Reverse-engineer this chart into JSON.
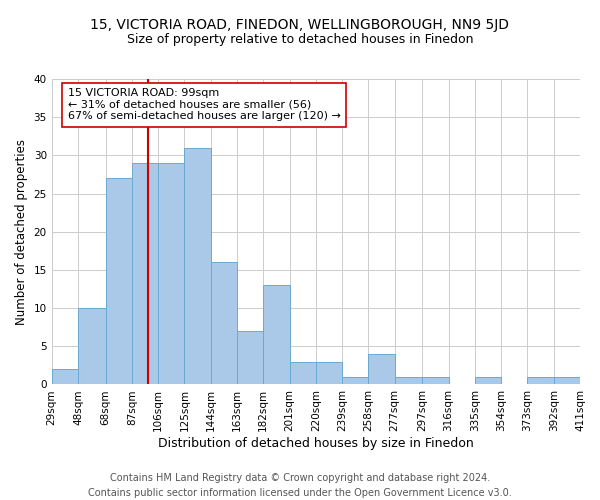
{
  "title": "15, VICTORIA ROAD, FINEDON, WELLINGBOROUGH, NN9 5JD",
  "subtitle": "Size of property relative to detached houses in Finedon",
  "xlabel": "Distribution of detached houses by size in Finedon",
  "ylabel": "Number of detached properties",
  "bins": [
    29,
    48,
    68,
    87,
    106,
    125,
    144,
    163,
    182,
    201,
    220,
    239,
    258,
    277,
    297,
    316,
    335,
    354,
    373,
    392,
    411
  ],
  "bin_labels": [
    "29sqm",
    "48sqm",
    "68sqm",
    "87sqm",
    "106sqm",
    "125sqm",
    "144sqm",
    "163sqm",
    "182sqm",
    "201sqm",
    "220sqm",
    "239sqm",
    "258sqm",
    "277sqm",
    "297sqm",
    "316sqm",
    "335sqm",
    "354sqm",
    "373sqm",
    "392sqm",
    "411sqm"
  ],
  "counts": [
    2,
    10,
    27,
    29,
    29,
    31,
    16,
    7,
    13,
    3,
    3,
    1,
    4,
    1,
    1,
    0,
    1,
    0,
    1,
    1
  ],
  "bar_color": "#aac9e8",
  "bar_edge_color": "#6aaad4",
  "property_value": 99,
  "vline_color": "#cc0000",
  "annotation_line1": "15 VICTORIA ROAD: 99sqm",
  "annotation_line2": "← 31% of detached houses are smaller (56)",
  "annotation_line3": "67% of semi-detached houses are larger (120) →",
  "annotation_box_edge": "#cc0000",
  "annotation_box_face": "#ffffff",
  "ylim": [
    0,
    40
  ],
  "yticks": [
    0,
    5,
    10,
    15,
    20,
    25,
    30,
    35,
    40
  ],
  "grid_color": "#cccccc",
  "background_color": "#ffffff",
  "footer_line1": "Contains HM Land Registry data © Crown copyright and database right 2024.",
  "footer_line2": "Contains public sector information licensed under the Open Government Licence v3.0.",
  "title_fontsize": 10,
  "subtitle_fontsize": 9,
  "xlabel_fontsize": 9,
  "ylabel_fontsize": 8.5,
  "tick_fontsize": 7.5,
  "annotation_fontsize": 8,
  "footer_fontsize": 7
}
